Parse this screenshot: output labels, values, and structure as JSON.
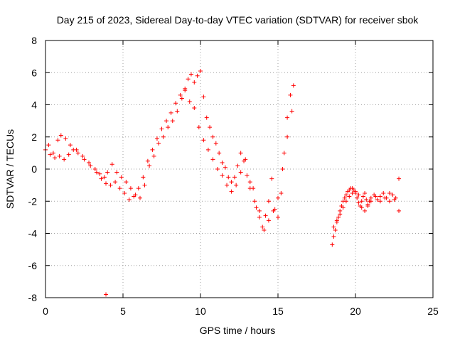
{
  "chart_data": {
    "type": "scatter",
    "title": "Day 215 of 2023, Sidereal Day-to-day VTEC variation (SDTVAR) for receiver sbok",
    "xlabel": "GPS time / hours",
    "ylabel": "SDTVAR / TECUs",
    "xlim": [
      0,
      25
    ],
    "ylim": [
      -8,
      8
    ],
    "x_ticks": [
      "0",
      "5",
      "10",
      "15",
      "20",
      "25"
    ],
    "y_ticks": [
      "8",
      "6",
      "4",
      "2",
      "0",
      "-2",
      "-4",
      "-6",
      "-8"
    ],
    "grid": true,
    "legend": "none",
    "marker": "plus",
    "color": "#ff0000",
    "series": [
      {
        "x": [
          0.0,
          0.2,
          0.5,
          0.8,
          1.0,
          1.3,
          1.6,
          2.0,
          2.4,
          2.8,
          3.2,
          3.5,
          3.8,
          4.0,
          4.3,
          4.6,
          4.9,
          5.2,
          5.5,
          5.8,
          6.1,
          6.4,
          6.7,
          7.0,
          7.3,
          7.6,
          7.9,
          8.2,
          8.5,
          8.8,
          9.0,
          9.2,
          9.4,
          9.6,
          9.8,
          10.0,
          10.2,
          10.4,
          10.6,
          10.8,
          11.0,
          11.2,
          11.4,
          11.6,
          11.8,
          12.0,
          12.2,
          12.4,
          12.6,
          12.8,
          13.0,
          13.2,
          13.4,
          13.6,
          13.8,
          14.0,
          14.2,
          14.4,
          14.6,
          14.8,
          15.0,
          15.2,
          15.4,
          15.6,
          15.8,
          16.0
        ],
        "y": [
          1.2,
          1.5,
          1.0,
          1.8,
          2.1,
          1.9,
          1.5,
          1.2,
          0.8,
          0.4,
          0.0,
          -0.3,
          -0.5,
          -0.2,
          0.3,
          -0.2,
          -0.5,
          -0.8,
          -1.2,
          -1.6,
          -1.8,
          -1.0,
          0.2,
          0.8,
          1.6,
          2.0,
          2.6,
          3.0,
          3.6,
          4.4,
          5.0,
          5.6,
          5.9,
          5.4,
          5.8,
          6.1,
          4.5,
          3.2,
          2.6,
          2.0,
          1.6,
          1.0,
          0.4,
          0.1,
          -0.5,
          -0.8,
          -0.5,
          0.2,
          1.0,
          0.5,
          -0.4,
          -0.8,
          -1.2,
          -2.4,
          -3.0,
          -3.6,
          -2.9,
          -2.0,
          -0.6,
          -2.5,
          -3.0,
          -1.5,
          1.0,
          3.2,
          4.6,
          5.2
        ]
      },
      {
        "x": [
          0.3,
          0.6,
          0.9,
          1.2,
          1.5,
          1.8,
          2.1,
          2.5,
          2.9,
          3.3,
          3.6,
          3.9,
          4.2,
          4.5,
          4.8,
          5.1,
          5.4,
          5.7,
          6.0,
          6.3,
          6.6,
          6.9,
          7.2,
          7.5,
          7.8,
          8.1,
          8.4,
          8.7,
          9.0,
          9.3,
          9.6,
          9.9,
          10.2,
          10.5,
          10.8,
          11.1,
          11.4,
          11.7,
          12.0,
          12.3,
          12.6,
          12.9,
          13.2,
          13.5,
          13.8,
          14.1,
          14.4,
          14.7,
          15.0,
          15.3,
          15.6,
          15.9
        ],
        "y": [
          0.9,
          0.7,
          0.8,
          0.6,
          0.9,
          1.2,
          1.0,
          0.6,
          0.2,
          -0.2,
          -0.6,
          -0.9,
          -1.0,
          -0.8,
          -1.2,
          -1.5,
          -1.9,
          -1.7,
          -1.2,
          -0.5,
          0.5,
          1.2,
          1.9,
          2.5,
          3.0,
          3.5,
          4.1,
          4.6,
          4.9,
          4.2,
          3.8,
          2.6,
          1.8,
          1.2,
          0.6,
          0.0,
          -0.4,
          -1.0,
          -1.4,
          -1.0,
          -0.2,
          0.6,
          -1.2,
          -2.0,
          -2.6,
          -3.8,
          -3.2,
          -2.6,
          -1.8,
          0.0,
          2.0,
          3.6
        ]
      },
      {
        "x": [
          18.5,
          18.6,
          18.7,
          18.8,
          18.9,
          19.0,
          19.1,
          19.2,
          19.3,
          19.4,
          19.5,
          19.6,
          19.7,
          19.8,
          19.9,
          20.0,
          20.1,
          20.2,
          20.3,
          20.4,
          20.5,
          20.6,
          20.7,
          20.8,
          20.9,
          21.0,
          21.2,
          21.4,
          21.6,
          21.8,
          22.0,
          22.2,
          22.4,
          22.6,
          22.8
        ],
        "y": [
          -4.7,
          -4.2,
          -3.8,
          -3.3,
          -3.0,
          -2.6,
          -2.3,
          -2.0,
          -1.8,
          -1.6,
          -1.4,
          -1.3,
          -1.2,
          -1.2,
          -1.3,
          -1.5,
          -1.8,
          -2.1,
          -2.3,
          -2.0,
          -1.7,
          -1.5,
          -1.9,
          -2.2,
          -2.0,
          -1.8,
          -1.6,
          -1.9,
          -1.7,
          -1.5,
          -1.8,
          -2.0,
          -1.6,
          -1.8,
          -2.6
        ]
      },
      {
        "x": [
          18.6,
          18.8,
          19.0,
          19.2,
          19.4,
          19.6,
          19.8,
          20.0,
          20.2,
          20.4,
          20.6,
          20.8,
          21.0,
          21.3,
          21.6,
          21.9,
          22.2,
          22.5,
          22.8
        ],
        "y": [
          -3.6,
          -3.2,
          -2.8,
          -2.4,
          -2.0,
          -1.7,
          -1.5,
          -1.4,
          -1.6,
          -2.4,
          -2.6,
          -2.3,
          -2.0,
          -1.7,
          -2.0,
          -1.8,
          -1.5,
          -1.9,
          -0.6
        ]
      },
      {
        "x": [
          3.9
        ],
        "y": [
          -7.8
        ]
      }
    ]
  }
}
